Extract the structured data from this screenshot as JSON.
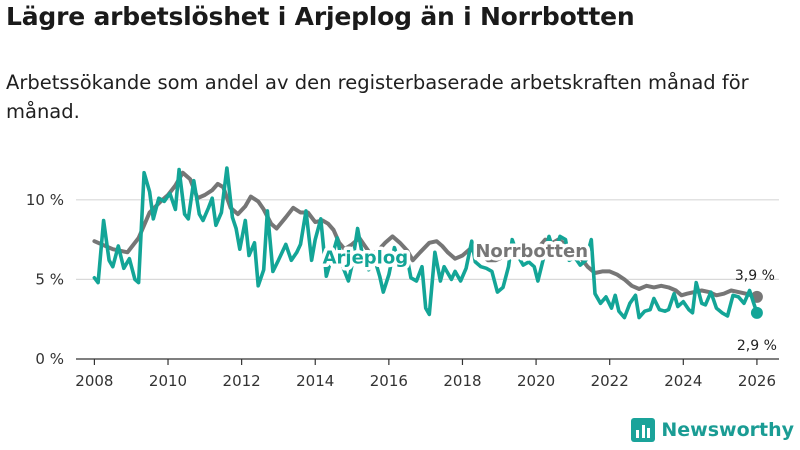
{
  "title": "Lägre arbetslöshet i Arjeplog än i Norrbotten",
  "subtitle": "Arbetssökande som andel av den registerbaserade arbetskraften månad för månad.",
  "brand": {
    "name": "Newsworthy"
  },
  "colors": {
    "arjeplog": "#13a597",
    "norrbotten": "#767676",
    "grid": "#d9d9d9",
    "axis": "#333333"
  },
  "chart_data": {
    "type": "line",
    "title": "Lägre arbetslöshet i Arjeplog än i Norrbotten",
    "xlabel": "",
    "ylabel": "",
    "xlim": [
      2007.5,
      2026.6
    ],
    "ylim": [
      0,
      12.5
    ],
    "x_ticks": [
      2008,
      2010,
      2012,
      2014,
      2016,
      2018,
      2020,
      2022,
      2024,
      2026
    ],
    "x_tick_labels": [
      "2008",
      "2010",
      "2012",
      "2014",
      "2016",
      "2018",
      "2020",
      "2022",
      "2024",
      "2026"
    ],
    "y_ticks": [
      0,
      5,
      10
    ],
    "y_tick_labels": [
      "0 %",
      "5 %",
      "10 %"
    ],
    "series": [
      {
        "name": "Norrbotten",
        "label_at": [
          2018.35,
          6.4
        ],
        "end_label": "3,9 %",
        "points": [
          [
            2008.0,
            7.4
          ],
          [
            2008.5,
            6.9
          ],
          [
            2008.9,
            6.7
          ],
          [
            2009.2,
            7.6
          ],
          [
            2009.5,
            9.2
          ],
          [
            2009.8,
            9.9
          ],
          [
            2010.0,
            10.3
          ],
          [
            2010.2,
            10.9
          ],
          [
            2010.4,
            11.7
          ],
          [
            2010.6,
            11.3
          ],
          [
            2010.8,
            10.1
          ],
          [
            2011.0,
            10.3
          ],
          [
            2011.2,
            10.6
          ],
          [
            2011.35,
            11.0
          ],
          [
            2011.5,
            10.8
          ],
          [
            2011.7,
            9.5
          ],
          [
            2011.9,
            9.1
          ],
          [
            2012.1,
            9.6
          ],
          [
            2012.25,
            10.2
          ],
          [
            2012.45,
            9.9
          ],
          [
            2012.6,
            9.4
          ],
          [
            2012.8,
            8.5
          ],
          [
            2012.95,
            8.2
          ],
          [
            2013.2,
            8.9
          ],
          [
            2013.4,
            9.5
          ],
          [
            2013.6,
            9.2
          ],
          [
            2013.8,
            9.2
          ],
          [
            2014.0,
            8.6
          ],
          [
            2014.2,
            8.7
          ],
          [
            2014.35,
            8.5
          ],
          [
            2014.5,
            8.1
          ],
          [
            2014.65,
            7.3
          ],
          [
            2014.8,
            6.9
          ],
          [
            2015.0,
            7.2
          ],
          [
            2015.2,
            7.6
          ],
          [
            2015.35,
            7.1
          ],
          [
            2015.5,
            6.6
          ],
          [
            2015.7,
            6.8
          ],
          [
            2015.9,
            7.3
          ],
          [
            2016.1,
            7.7
          ],
          [
            2016.3,
            7.3
          ],
          [
            2016.5,
            6.8
          ],
          [
            2016.65,
            6.2
          ],
          [
            2016.85,
            6.7
          ],
          [
            2017.1,
            7.3
          ],
          [
            2017.3,
            7.4
          ],
          [
            2017.45,
            7.1
          ],
          [
            2017.6,
            6.7
          ],
          [
            2017.8,
            6.3
          ],
          [
            2018.0,
            6.5
          ],
          [
            2018.2,
            6.9
          ],
          [
            2018.45,
            6.6
          ],
          [
            2018.7,
            6.2
          ],
          [
            2018.9,
            6.2
          ],
          [
            2019.1,
            6.4
          ],
          [
            2019.3,
            6.8
          ],
          [
            2019.5,
            6.9
          ],
          [
            2019.7,
            6.5
          ],
          [
            2019.9,
            6.5
          ],
          [
            2020.1,
            7.1
          ],
          [
            2020.25,
            7.5
          ],
          [
            2020.45,
            7.3
          ],
          [
            2020.6,
            7.5
          ],
          [
            2020.8,
            7.2
          ],
          [
            2021.0,
            6.7
          ],
          [
            2021.2,
            6.4
          ],
          [
            2021.4,
            5.8
          ],
          [
            2021.6,
            5.4
          ],
          [
            2021.8,
            5.5
          ],
          [
            2022.0,
            5.5
          ],
          [
            2022.2,
            5.3
          ],
          [
            2022.4,
            5.0
          ],
          [
            2022.6,
            4.6
          ],
          [
            2022.8,
            4.4
          ],
          [
            2023.0,
            4.6
          ],
          [
            2023.2,
            4.5
          ],
          [
            2023.4,
            4.6
          ],
          [
            2023.6,
            4.5
          ],
          [
            2023.8,
            4.3
          ],
          [
            2023.95,
            4.0
          ],
          [
            2024.1,
            4.1
          ],
          [
            2024.3,
            4.2
          ],
          [
            2024.5,
            4.3
          ],
          [
            2024.7,
            4.2
          ],
          [
            2024.9,
            4.0
          ],
          [
            2025.1,
            4.1
          ],
          [
            2025.3,
            4.3
          ],
          [
            2025.5,
            4.2
          ],
          [
            2025.7,
            4.1
          ],
          [
            2025.85,
            4.0
          ],
          [
            2026.0,
            3.9
          ]
        ]
      },
      {
        "name": "Arjeplog",
        "label_at": [
          2014.2,
          6.0
        ],
        "end_label": "2,9 %",
        "points": [
          [
            2008.0,
            5.1
          ],
          [
            2008.1,
            4.8
          ],
          [
            2008.25,
            8.7
          ],
          [
            2008.4,
            6.2
          ],
          [
            2008.5,
            5.8
          ],
          [
            2008.65,
            7.1
          ],
          [
            2008.8,
            5.7
          ],
          [
            2008.95,
            6.3
          ],
          [
            2009.1,
            5.0
          ],
          [
            2009.2,
            4.8
          ],
          [
            2009.35,
            11.7
          ],
          [
            2009.5,
            10.5
          ],
          [
            2009.6,
            8.8
          ],
          [
            2009.75,
            10.1
          ],
          [
            2009.9,
            9.9
          ],
          [
            2010.05,
            10.4
          ],
          [
            2010.2,
            9.4
          ],
          [
            2010.3,
            11.9
          ],
          [
            2010.45,
            9.1
          ],
          [
            2010.55,
            8.8
          ],
          [
            2010.7,
            11.2
          ],
          [
            2010.85,
            9.1
          ],
          [
            2010.95,
            8.7
          ],
          [
            2011.1,
            9.5
          ],
          [
            2011.2,
            10.1
          ],
          [
            2011.3,
            8.4
          ],
          [
            2011.45,
            9.2
          ],
          [
            2011.6,
            12.0
          ],
          [
            2011.75,
            8.9
          ],
          [
            2011.85,
            8.2
          ],
          [
            2011.95,
            6.9
          ],
          [
            2012.1,
            8.7
          ],
          [
            2012.2,
            6.5
          ],
          [
            2012.35,
            7.3
          ],
          [
            2012.45,
            4.6
          ],
          [
            2012.6,
            5.6
          ],
          [
            2012.7,
            9.3
          ],
          [
            2012.85,
            5.5
          ],
          [
            2013.0,
            6.2
          ],
          [
            2013.2,
            7.2
          ],
          [
            2013.35,
            6.2
          ],
          [
            2013.5,
            6.7
          ],
          [
            2013.6,
            7.2
          ],
          [
            2013.75,
            9.3
          ],
          [
            2013.9,
            6.2
          ],
          [
            2014.0,
            7.5
          ],
          [
            2014.15,
            8.8
          ],
          [
            2014.3,
            5.2
          ],
          [
            2014.45,
            6.4
          ],
          [
            2014.6,
            7.6
          ],
          [
            2014.75,
            5.8
          ],
          [
            2014.9,
            4.9
          ],
          [
            2015.0,
            5.9
          ],
          [
            2015.15,
            8.2
          ],
          [
            2015.3,
            6.3
          ],
          [
            2015.45,
            5.6
          ],
          [
            2015.6,
            6.4
          ],
          [
            2015.75,
            5.2
          ],
          [
            2015.85,
            4.2
          ],
          [
            2016.0,
            5.3
          ],
          [
            2016.15,
            7.0
          ],
          [
            2016.3,
            5.9
          ],
          [
            2016.5,
            6.3
          ],
          [
            2016.6,
            5.1
          ],
          [
            2016.75,
            4.9
          ],
          [
            2016.9,
            5.8
          ],
          [
            2017.0,
            3.2
          ],
          [
            2017.1,
            2.8
          ],
          [
            2017.25,
            6.7
          ],
          [
            2017.4,
            4.9
          ],
          [
            2017.5,
            5.8
          ],
          [
            2017.7,
            5.0
          ],
          [
            2017.8,
            5.5
          ],
          [
            2017.95,
            4.9
          ],
          [
            2018.1,
            5.7
          ],
          [
            2018.25,
            7.4
          ],
          [
            2018.35,
            6.1
          ],
          [
            2018.5,
            5.8
          ],
          [
            2018.65,
            5.7
          ],
          [
            2018.8,
            5.5
          ],
          [
            2018.95,
            4.2
          ],
          [
            2019.1,
            4.5
          ],
          [
            2019.25,
            5.8
          ],
          [
            2019.35,
            7.5
          ],
          [
            2019.5,
            6.5
          ],
          [
            2019.65,
            5.9
          ],
          [
            2019.8,
            6.1
          ],
          [
            2019.95,
            5.8
          ],
          [
            2020.05,
            4.9
          ],
          [
            2020.2,
            6.3
          ],
          [
            2020.35,
            7.7
          ],
          [
            2020.5,
            6.6
          ],
          [
            2020.65,
            7.7
          ],
          [
            2020.8,
            7.5
          ],
          [
            2020.9,
            6.2
          ],
          [
            2021.05,
            6.4
          ],
          [
            2021.2,
            5.9
          ],
          [
            2021.35,
            6.2
          ],
          [
            2021.5,
            7.5
          ],
          [
            2021.6,
            4.1
          ],
          [
            2021.75,
            3.5
          ],
          [
            2021.9,
            3.9
          ],
          [
            2022.05,
            3.2
          ],
          [
            2022.15,
            4.0
          ],
          [
            2022.25,
            3.0
          ],
          [
            2022.4,
            2.6
          ],
          [
            2022.55,
            3.5
          ],
          [
            2022.7,
            4.0
          ],
          [
            2022.8,
            2.6
          ],
          [
            2022.95,
            3.0
          ],
          [
            2023.1,
            3.1
          ],
          [
            2023.2,
            3.8
          ],
          [
            2023.35,
            3.1
          ],
          [
            2023.5,
            3.0
          ],
          [
            2023.6,
            3.1
          ],
          [
            2023.75,
            4.1
          ],
          [
            2023.85,
            3.3
          ],
          [
            2024.0,
            3.6
          ],
          [
            2024.15,
            3.1
          ],
          [
            2024.25,
            2.9
          ],
          [
            2024.35,
            4.8
          ],
          [
            2024.5,
            3.5
          ],
          [
            2024.6,
            3.4
          ],
          [
            2024.75,
            4.2
          ],
          [
            2024.9,
            3.2
          ],
          [
            2025.05,
            2.9
          ],
          [
            2025.2,
            2.7
          ],
          [
            2025.35,
            4.0
          ],
          [
            2025.5,
            3.9
          ],
          [
            2025.65,
            3.5
          ],
          [
            2025.8,
            4.3
          ],
          [
            2025.9,
            3.6
          ],
          [
            2026.0,
            2.9
          ]
        ]
      }
    ]
  }
}
